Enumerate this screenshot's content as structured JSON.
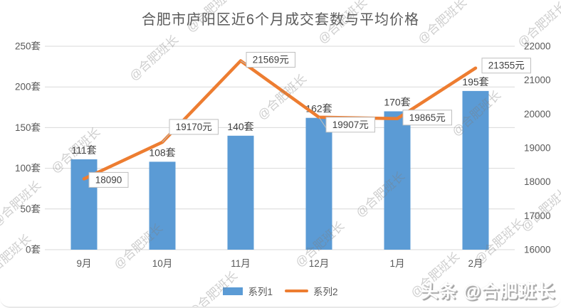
{
  "watermark": {
    "text": "@合肥班长",
    "brand": "头条 @合肥班长"
  },
  "legend": [
    {
      "label": "系列1",
      "color": "#5B9BD5",
      "type": "bar"
    },
    {
      "label": "系列2",
      "color": "#ED7D31",
      "type": "line"
    }
  ],
  "chart_data": {
    "type": "combo",
    "title": "合肥市庐阳区近6个月成交套数与平均价格",
    "categories": [
      "9月",
      "10月",
      "11月",
      "12月",
      "1月",
      "2月"
    ],
    "series": [
      {
        "name": "系列1",
        "type": "bar",
        "axis": "left",
        "color": "#5B9BD5",
        "values": [
          111,
          108,
          140,
          162,
          170,
          195
        ],
        "labels": [
          "111套",
          "108套",
          "140套",
          "162套",
          "170套",
          "195套"
        ]
      },
      {
        "name": "系列2",
        "type": "line",
        "axis": "right",
        "color": "#ED7D31",
        "values": [
          18090,
          19170,
          21569,
          19907,
          19865,
          21355
        ],
        "labels": [
          "18090",
          "19170元",
          "21569元",
          "19907元",
          "19865元",
          "21355元"
        ],
        "label_offsets": [
          [
            7,
            -9
          ],
          [
            10,
            -32
          ],
          [
            8,
            -12
          ],
          [
            10,
            0
          ],
          [
            8,
            -12
          ],
          [
            9,
            -14
          ]
        ],
        "label_leaders": [
          false,
          true,
          true,
          true,
          false,
          false
        ]
      }
    ],
    "left_axis": {
      "unit": "套",
      "min": 0,
      "max": 250,
      "tick_values": [
        0,
        50,
        100,
        150,
        200,
        250
      ],
      "tick_labels": [
        "0套",
        "50套",
        "100套",
        "150套",
        "200套",
        "250套"
      ]
    },
    "right_axis": {
      "unit": "元",
      "min": 16000,
      "max": 22000,
      "tick_values": [
        16000,
        17000,
        18000,
        19000,
        20000,
        21000,
        22000
      ],
      "tick_labels": [
        "16000",
        "17000",
        "18000",
        "19000",
        "20000",
        "21000",
        "22000"
      ]
    },
    "grid": true,
    "legend_position": "bottom"
  }
}
